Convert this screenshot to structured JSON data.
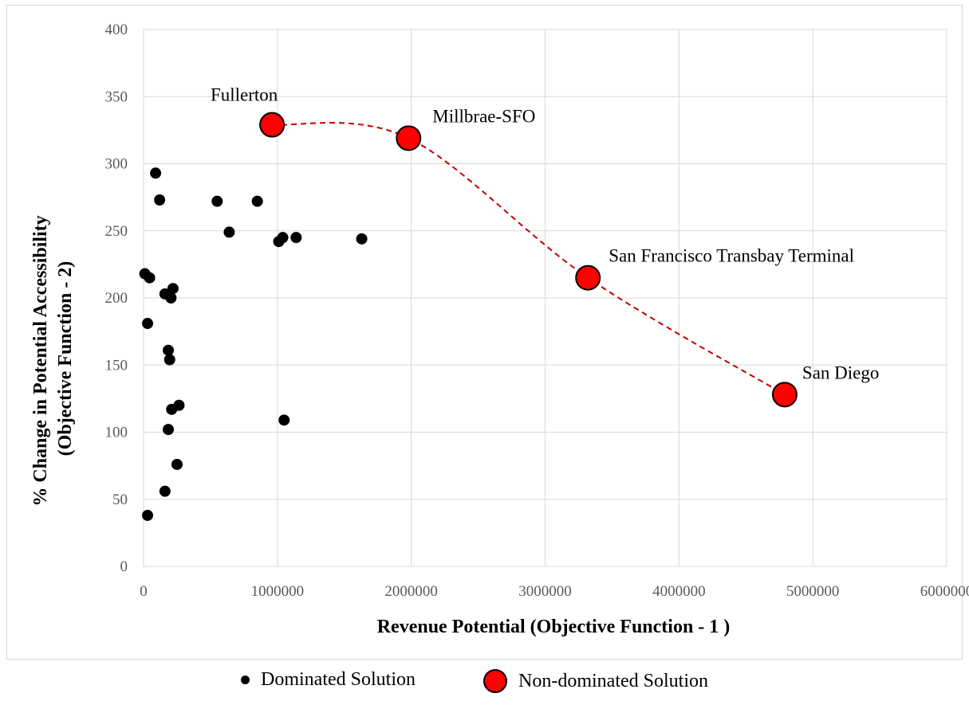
{
  "chart_data": {
    "type": "scatter",
    "xlabel": "Revenue Potential (Objective Function - 1 )",
    "ylabel_line1": "% Change in Potential Accessibility",
    "ylabel_line2": "(Objective Function - 2)",
    "xlim": [
      0,
      6000000
    ],
    "ylim": [
      0,
      400
    ],
    "x_ticks": [
      "0",
      "1000000",
      "2000000",
      "3000000",
      "4000000",
      "5000000",
      "6000000"
    ],
    "y_ticks": [
      "0",
      "50",
      "100",
      "150",
      "200",
      "250",
      "300",
      "350",
      "400"
    ],
    "grid": true,
    "legend_position": "bottom",
    "series": [
      {
        "name": "Dominated Solution",
        "color": "#000000",
        "points": [
          [
            90000,
            293
          ],
          [
            120000,
            273
          ],
          [
            10000,
            218
          ],
          [
            45000,
            215
          ],
          [
            30000,
            181
          ],
          [
            160000,
            203
          ],
          [
            220000,
            207
          ],
          [
            205000,
            200
          ],
          [
            185000,
            161
          ],
          [
            195000,
            154
          ],
          [
            210000,
            117
          ],
          [
            265000,
            120
          ],
          [
            185000,
            102
          ],
          [
            250000,
            76
          ],
          [
            160000,
            56
          ],
          [
            30000,
            38
          ],
          [
            550000,
            272
          ],
          [
            640000,
            249
          ],
          [
            850000,
            272
          ],
          [
            1010000,
            242
          ],
          [
            1040000,
            245
          ],
          [
            1140000,
            245
          ],
          [
            1630000,
            244
          ],
          [
            1050000,
            109
          ]
        ]
      },
      {
        "name": "Non-dominated Solution",
        "color": "#ff0000",
        "points": [
          {
            "x": 960000,
            "y": 329,
            "label": "Fullerton"
          },
          {
            "x": 1980000,
            "y": 319,
            "label": "Millbrae-SFO"
          },
          {
            "x": 3320000,
            "y": 215,
            "label": "San Francisco Transbay Terminal"
          },
          {
            "x": 4790000,
            "y": 128,
            "label": "San Diego"
          }
        ]
      }
    ],
    "frontier_line": {
      "style": "dashed",
      "color": "#c00000"
    }
  }
}
